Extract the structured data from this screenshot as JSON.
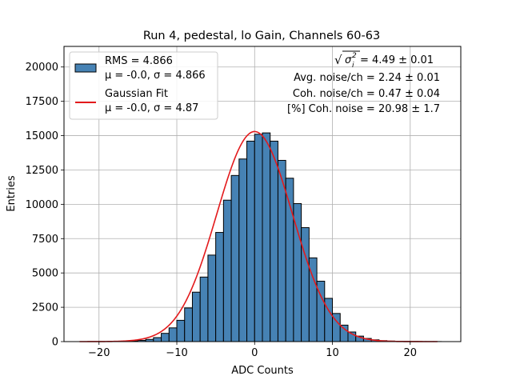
{
  "chart_data": {
    "type": "bar",
    "title": "Run 4, pedestal, lo Gain, Channels 60-63",
    "xlabel": "ADC Counts",
    "ylabel": "Entries",
    "xlim": [
      -24.5,
      26.5
    ],
    "ylim": [
      0,
      21500
    ],
    "xticks": [
      -20,
      -10,
      0,
      10,
      20
    ],
    "xtick_labels": [
      "−20",
      "−10",
      "0",
      "10",
      "20"
    ],
    "yticks": [
      0,
      2500,
      5000,
      7500,
      10000,
      12500,
      15000,
      17500,
      20000
    ],
    "ytick_labels": [
      "0",
      "2500",
      "5000",
      "7500",
      "10000",
      "12500",
      "15000",
      "17500",
      "20000"
    ],
    "grid": true,
    "legend_position": "top-left",
    "bar_color": "#4682b4",
    "fit_color": "#e31a1c",
    "bin_width": 1,
    "bin_starts": [
      -20,
      -19,
      -18,
      -17,
      -16,
      -15,
      -14,
      -13,
      -12,
      -11,
      -10,
      -9,
      -8,
      -7,
      -6,
      -5,
      -4,
      -3,
      -2,
      -1,
      0,
      1,
      2,
      3,
      4,
      5,
      6,
      7,
      8,
      9,
      10,
      11,
      12,
      13,
      14,
      15,
      16,
      17,
      18,
      19,
      20,
      21,
      22,
      23
    ],
    "values": [
      0,
      10,
      20,
      30,
      50,
      90,
      160,
      290,
      600,
      1000,
      1550,
      2450,
      3600,
      4700,
      6300,
      7950,
      10300,
      12100,
      13300,
      14600,
      15100,
      15200,
      14600,
      13200,
      11900,
      10050,
      8300,
      6100,
      4400,
      3150,
      2050,
      1200,
      700,
      400,
      230,
      130,
      70,
      40,
      25,
      15,
      10,
      5,
      5,
      5
    ],
    "series": [
      {
        "name": "RMS = 4.866",
        "stats": "μ = -0.0, σ = 4.866"
      },
      {
        "name": "Gaussian Fit",
        "stats": "μ = -0.0, σ = 4.87",
        "fit": {
          "mu": 0.0,
          "sigma": 4.87,
          "amplitude": 15300,
          "x_range": [
            -22.5,
            23.5
          ]
        }
      }
    ],
    "annotations": {
      "sqrt_prefix": "√",
      "sigma_symbol": "σ",
      "sigma_sub": "i",
      "sigma_sup": "2",
      "sqrt_value": " = 4.49 ± 0.01",
      "avg_noise": "Avg. noise/ch = 2.24 ± 0.01",
      "coh_noise": "Coh. noise/ch = 0.47 ± 0.04",
      "pct_coh_noise": "[%] Coh. noise = 20.98 ± 1.7"
    }
  }
}
